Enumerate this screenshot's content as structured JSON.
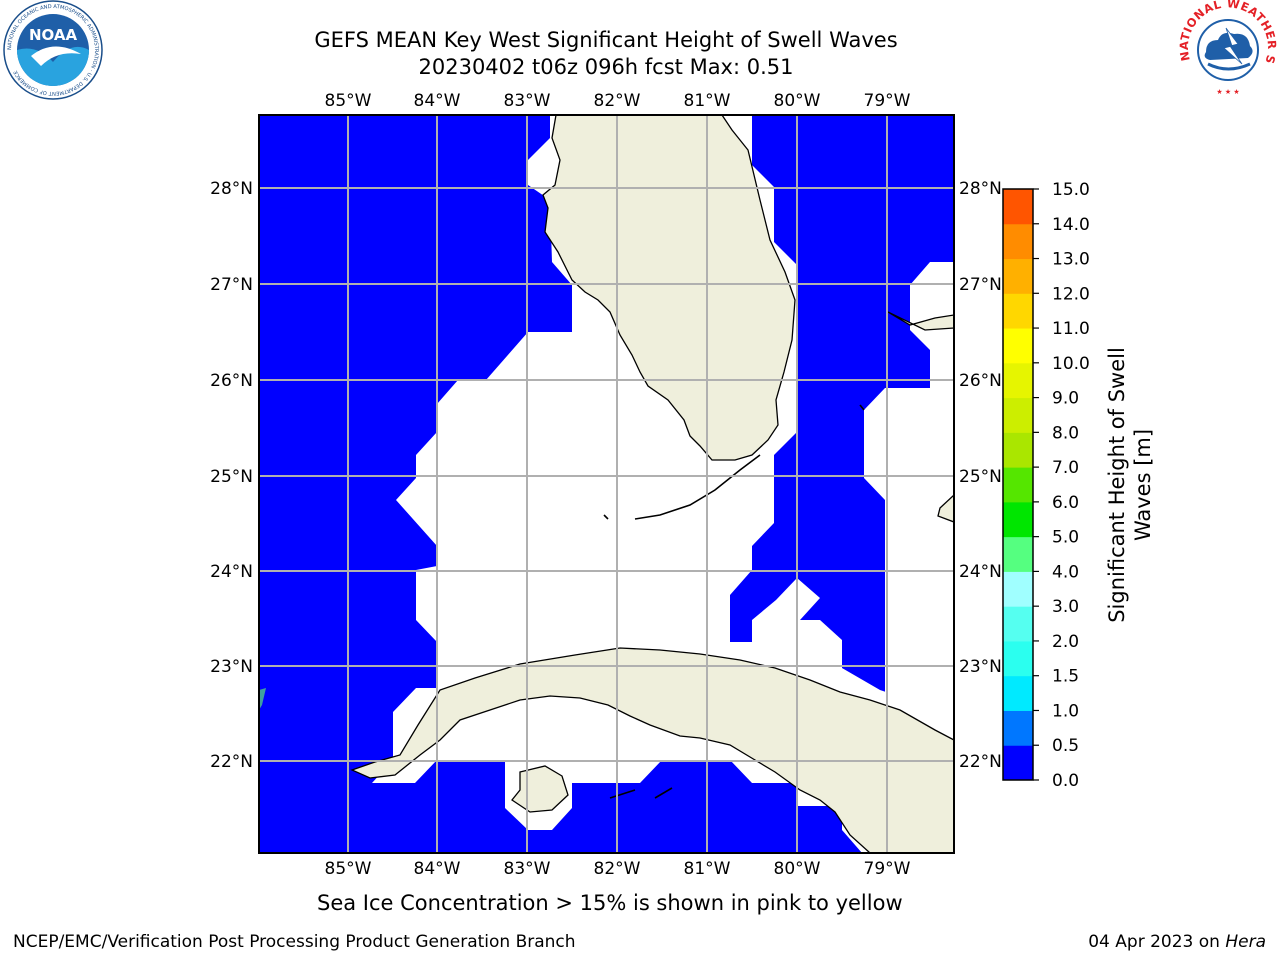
{
  "title": {
    "line1": "GEFS MEAN Key West Significant Height of Swell Waves",
    "line2": "20230402 t06z 096h fcst   Max: 0.51"
  },
  "map": {
    "lon_labels": [
      "85°W",
      "84°W",
      "83°W",
      "82°W",
      "81°W",
      "80°W",
      "79°W"
    ],
    "lat_labels": [
      "28°N",
      "27°N",
      "26°N",
      "25°N",
      "24°N",
      "23°N",
      "22°N"
    ],
    "land_color": "#efefdc",
    "ocean_value_color": "#0000ff",
    "gridline_color": "#b0b0b0"
  },
  "colorbar": {
    "label_line1": "Significant Height of Swell",
    "label_line2": "Waves [m]",
    "ticks": [
      "0.0",
      "0.5",
      "1.0",
      "1.5",
      "2.0",
      "3.0",
      "4.0",
      "5.0",
      "6.0",
      "7.0",
      "8.0",
      "9.0",
      "10.0",
      "11.0",
      "12.0",
      "13.0",
      "14.0",
      "15.0"
    ],
    "colors": [
      "#0000ff",
      "#0077ff",
      "#00eaff",
      "#2bffef",
      "#55fff0",
      "#a0ffff",
      "#55ff80",
      "#00e600",
      "#55e600",
      "#aae600",
      "#ccee00",
      "#e6f500",
      "#ffff00",
      "#ffd700",
      "#ffb000",
      "#ff8c00",
      "#ff5500",
      "#ff2a00",
      "#ff0000"
    ]
  },
  "bottom_note": "Sea Ice Concentration > 15% is shown in pink to yellow",
  "footer": {
    "left": "NCEP/EMC/Verification Post Processing Product Generation Branch",
    "right_prefix": "04 Apr 2023 on ",
    "right_host": "Hera"
  },
  "logos": {
    "noaa_text": "NOAA",
    "noaa_ring": "NATIONAL OCEANIC AND ATMOSPHERIC ADMINISTRATION · U.S. DEPARTMENT OF COMMERCE",
    "nws_ring": "NATIONAL WEATHER SERVICE"
  }
}
